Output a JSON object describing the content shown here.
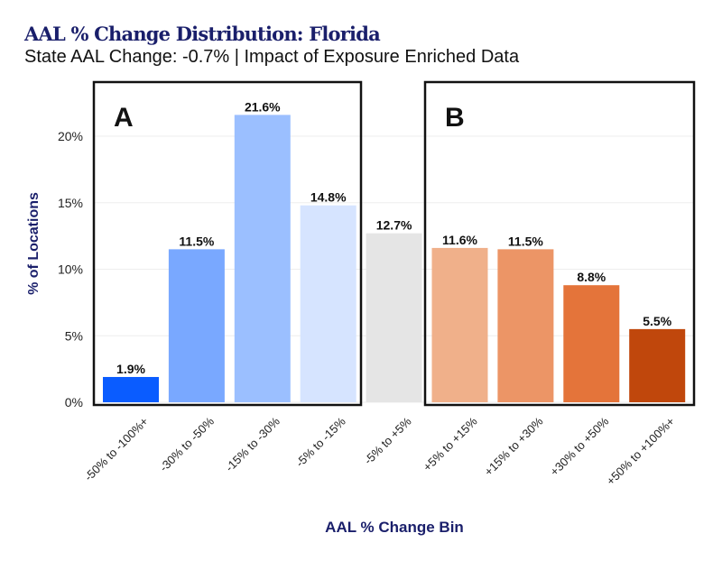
{
  "chart_data": {
    "type": "bar",
    "title": "AAL % Change Distribution: Florida",
    "subtitle": "State AAL Change: -0.7% | Impact of Exposure Enriched Data",
    "xlabel": "AAL % Change Bin",
    "ylabel": "% of Locations",
    "ylim": [
      0,
      23
    ],
    "yticks": [
      "0%",
      "5%",
      "10%",
      "15%",
      "20%"
    ],
    "ytick_values": [
      0,
      5,
      10,
      15,
      20
    ],
    "grid": true,
    "categories": [
      "-50% to -100%+",
      "-30% to -50%",
      "-15% to -30%",
      "-5% to -15%",
      "-5% to +5%",
      "+5% to +15%",
      "+15% to +30%",
      "+30% to +50%",
      "+50% to +100%+"
    ],
    "values": [
      1.9,
      11.5,
      21.6,
      14.8,
      12.7,
      11.6,
      11.5,
      8.8,
      5.5
    ],
    "data_labels": [
      "1.9%",
      "11.5%",
      "21.6%",
      "14.8%",
      "12.7%",
      "11.6%",
      "11.5%",
      "8.8%",
      "5.5%"
    ],
    "colors": [
      "#0a5cff",
      "#79a8ff",
      "#9bbfff",
      "#d6e4ff",
      "#e5e5e5",
      "#f0b08a",
      "#ec9566",
      "#e4743a",
      "#c0470c"
    ],
    "annotations": [
      {
        "label": "A",
        "covers": [
          "-50% to -100%+",
          "-30% to -50%",
          "-15% to -30%",
          "-5% to -15%"
        ]
      },
      {
        "label": "B",
        "covers": [
          "+5% to +15%",
          "+15% to +30%",
          "+30% to +50%",
          "+50% to +100%+"
        ]
      }
    ]
  }
}
